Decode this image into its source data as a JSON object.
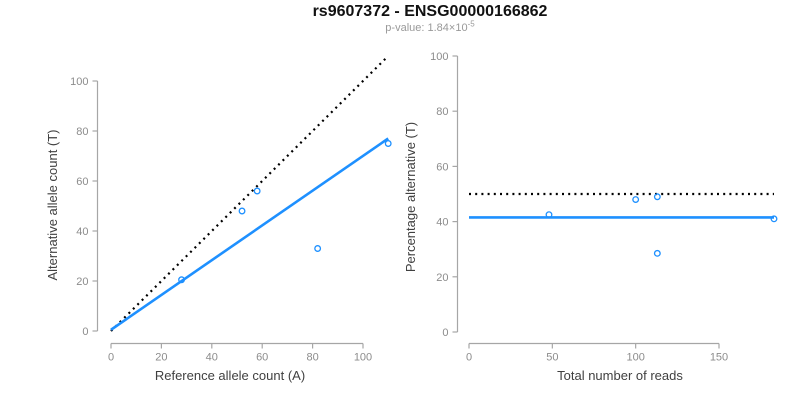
{
  "header": {
    "title": "rs9607372 - ENSG00000166862",
    "subtitle_prefix": "p-value: 1.84×10",
    "subtitle_exponent": "-5"
  },
  "colors": {
    "accent_blue": "#1E90FF",
    "dotted_line": "#000000",
    "tick_label": "#8c8c8c",
    "axis_line": "#a6a6a6",
    "axis_label": "#404040",
    "title": "#111111",
    "subtitle": "#999999",
    "background": "#ffffff"
  },
  "chart_data": [
    {
      "type": "scatter",
      "name": "allele-count-plot",
      "xlabel": "Reference allele count (A)",
      "ylabel": "Alternative allele count (T)",
      "xlim": [
        0,
        114
      ],
      "ylim": [
        0,
        114
      ],
      "xticks": [
        0,
        20,
        40,
        60,
        80,
        100
      ],
      "yticks": [
        0,
        20,
        40,
        60,
        80,
        100
      ],
      "grid": false,
      "legend": null,
      "points": [
        [
          28,
          20.5
        ],
        [
          52,
          48
        ],
        [
          58,
          56
        ],
        [
          82,
          33
        ],
        [
          110,
          75
        ]
      ],
      "lines": [
        {
          "name": "identity-line",
          "style": "dotted",
          "color": "#000000",
          "x": [
            0,
            110
          ],
          "y": [
            0,
            110
          ]
        },
        {
          "name": "regression-line",
          "style": "solid",
          "color": "#1E90FF",
          "x": [
            0,
            110
          ],
          "y": [
            0.5,
            77
          ]
        }
      ]
    },
    {
      "type": "scatter",
      "name": "percentage-plot",
      "xlabel": "Total number of reads",
      "ylabel": "Percentage alternative (T)",
      "xlim": [
        0,
        190
      ],
      "ylim": [
        0,
        104
      ],
      "xticks": [
        0,
        50,
        100,
        150
      ],
      "yticks": [
        0,
        20,
        40,
        60,
        80,
        100
      ],
      "grid": false,
      "legend": null,
      "points": [
        [
          48,
          42.5
        ],
        [
          100,
          48
        ],
        [
          113,
          49
        ],
        [
          113,
          28.5
        ],
        [
          183,
          41
        ]
      ],
      "lines": [
        {
          "name": "expected-50pct-line",
          "style": "dotted",
          "color": "#000000",
          "x": [
            0,
            183
          ],
          "y": [
            50,
            50
          ]
        },
        {
          "name": "mean-percentage-line",
          "style": "solid",
          "color": "#1E90FF",
          "x": [
            0,
            183
          ],
          "y": [
            41.5,
            41.5
          ]
        }
      ]
    }
  ]
}
